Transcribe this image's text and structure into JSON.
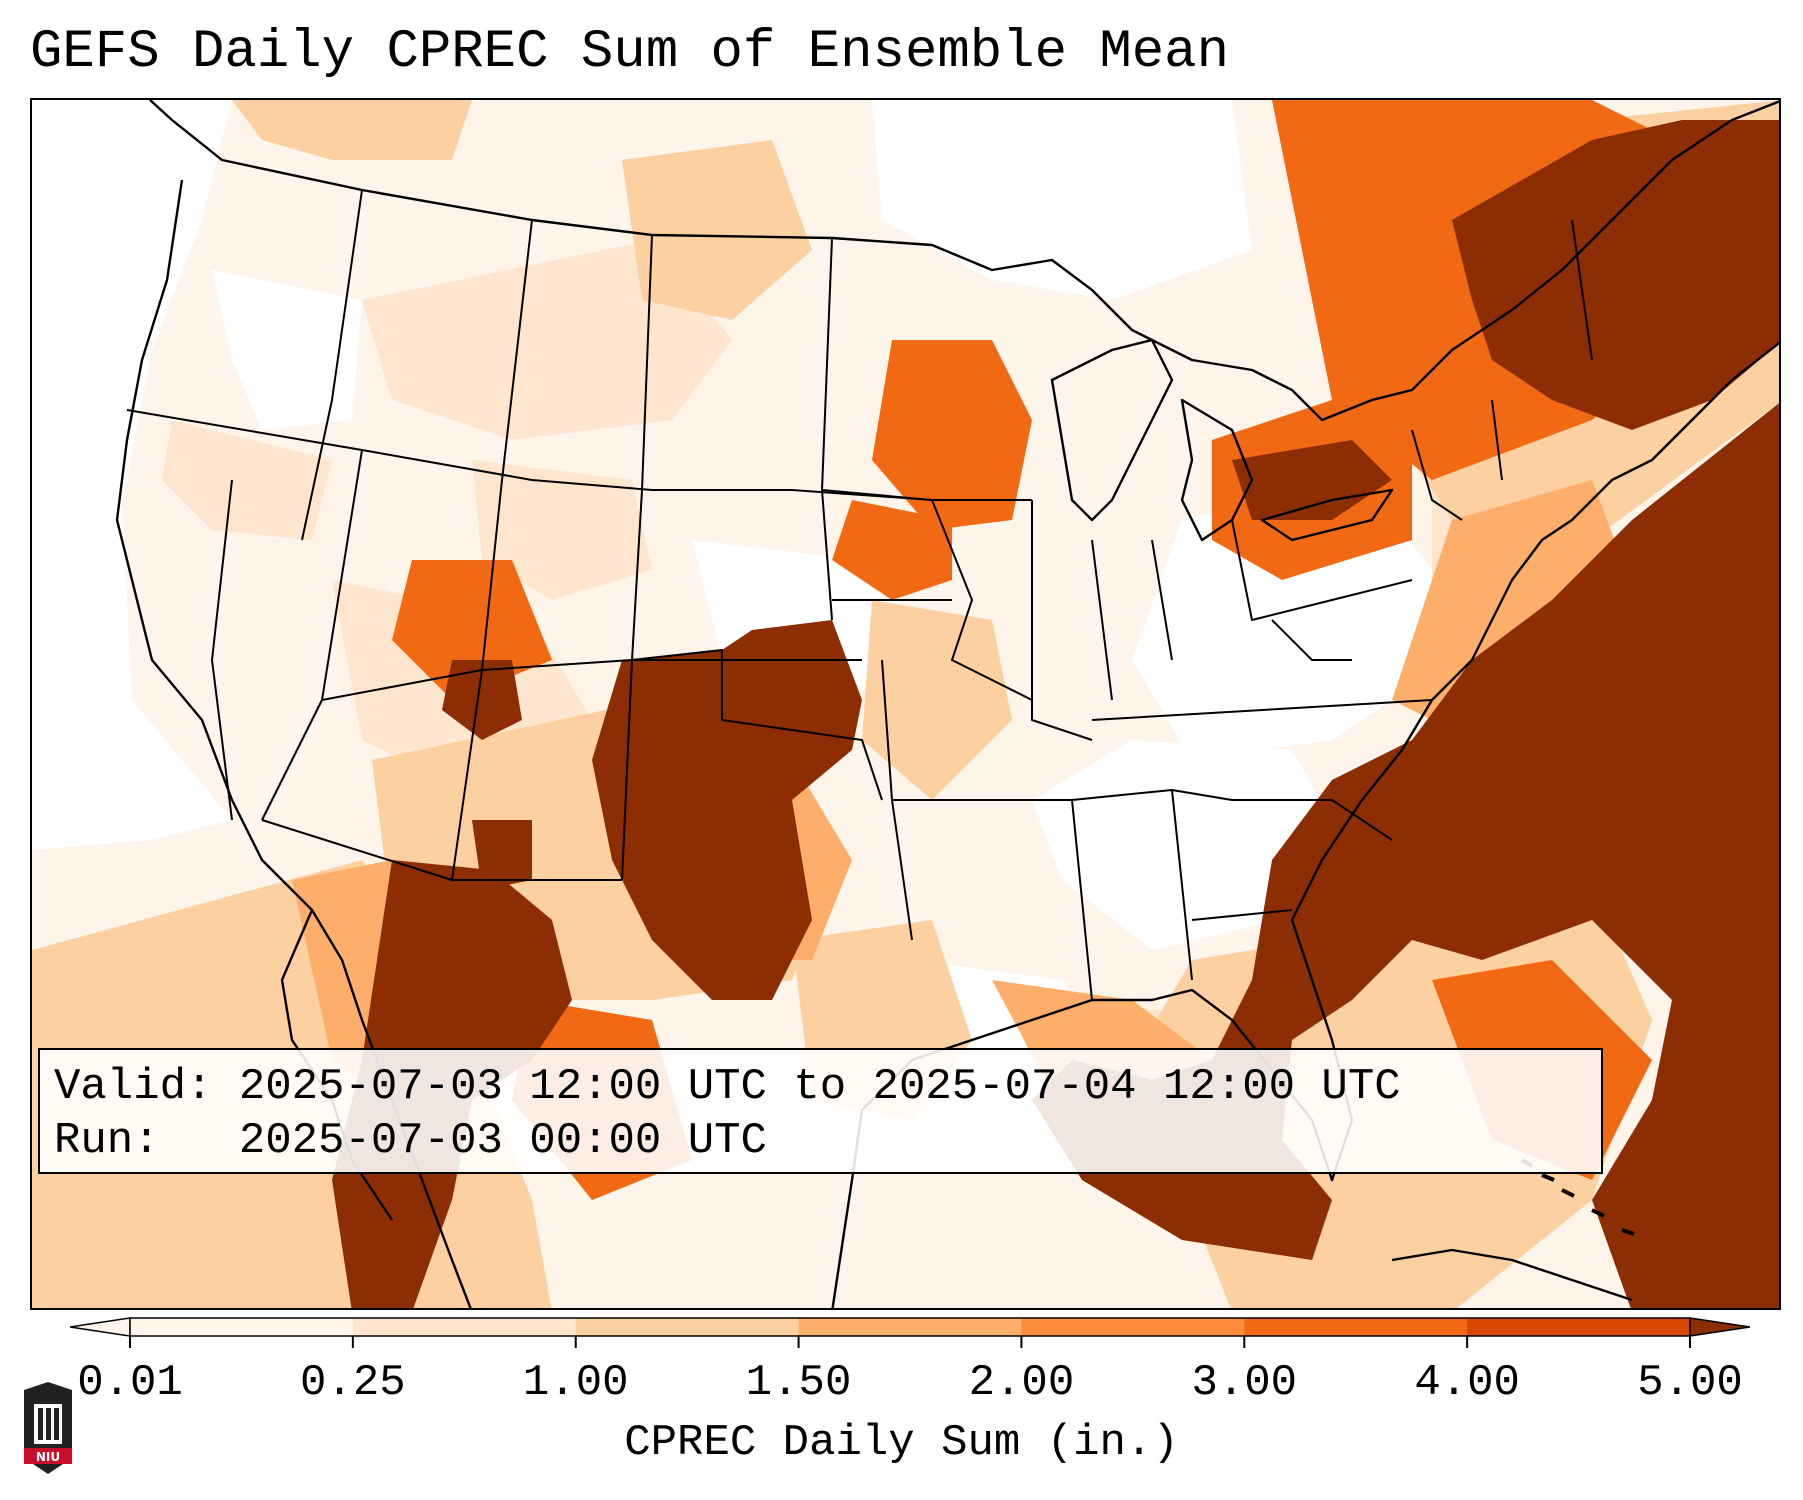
{
  "title": "GEFS Daily CPREC Sum of Ensemble Mean",
  "info": {
    "valid_label": "Valid:",
    "valid_value": "2025-07-03 12:00 UTC to 2025-07-04 12:00 UTC",
    "run_label": "Run:",
    "run_value": "2025-07-03 00:00 UTC"
  },
  "colorbar": {
    "label": "CPREC Daily Sum (in.)",
    "ticks": [
      "0.01",
      "0.25",
      "1.00",
      "1.50",
      "2.00",
      "3.00",
      "4.00",
      "5.00"
    ],
    "colors": [
      "#fff5eb",
      "#fee6ce",
      "#fdd0a2",
      "#fdae6b",
      "#fd8d3c",
      "#f16913",
      "#d94801",
      "#8c2d04"
    ],
    "extend": "both"
  },
  "map": {
    "domain": "CONUS",
    "colors": {
      "trace": "#fff4ea",
      "light": "#fee6ce",
      "medium": "#fdd0a2",
      "orange": "#fdae6b",
      "deep_orange": "#f16913",
      "dark": "#8c2d04"
    }
  },
  "logo": {
    "text": "NIU",
    "colors": {
      "body": "#222222",
      "accent": "#c8102e"
    }
  }
}
